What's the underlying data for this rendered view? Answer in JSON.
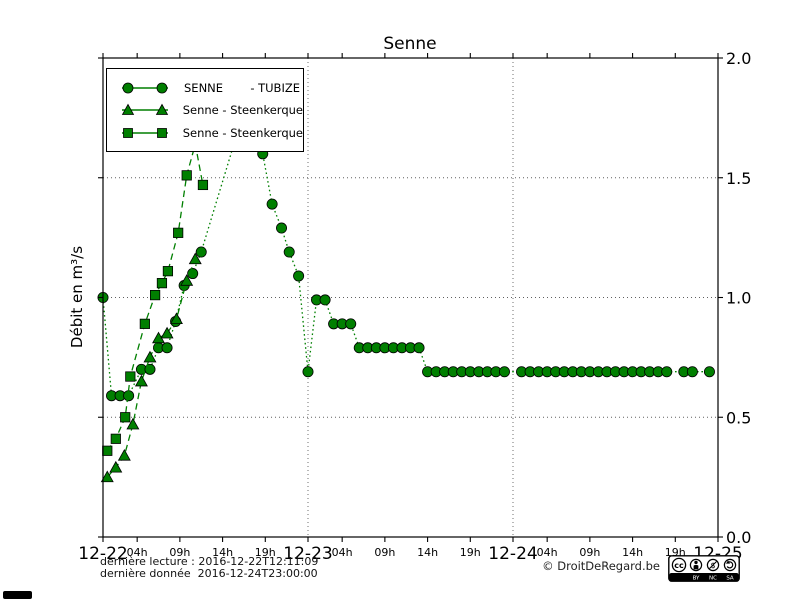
{
  "title": "Senne",
  "ylabel": "Débit en m³/s",
  "colors": {
    "series_green": "#007f00",
    "marker_edge": "#000000",
    "grid": "#606060",
    "axis": "#000000",
    "background": "#ffffff"
  },
  "legend": [
    {
      "marker": "circle",
      "label": "SENNE",
      "label2": "- TUBIZE"
    },
    {
      "marker": "triangle",
      "label": "Senne - Steenkerque"
    },
    {
      "marker": "square",
      "label": "Senne - Steenkerque"
    }
  ],
  "footer": {
    "last_reading": "dernière lecture : 2016-12-22T12:11:09",
    "last_data": "dernière donnée  2016-12-24T23:00:00",
    "copyright": "© DroitDeRegard.be",
    "license": {
      "cc_label": "cc",
      "parts": [
        "BY",
        "NC",
        "SA"
      ]
    }
  },
  "chart_data": {
    "type": "line",
    "title": "Senne",
    "xlabel": "",
    "ylabel": "Débit en m³/s",
    "x_unit": "hours since 2016-12-22 00:00",
    "xlim": [
      0,
      72
    ],
    "ylim": [
      0.0,
      2.0
    ],
    "grid": {
      "h_values": [
        0.5,
        1.0,
        1.5
      ],
      "v_hours": [
        24,
        48
      ]
    },
    "y_ticks": [
      {
        "v": 0.0,
        "label": "0.0"
      },
      {
        "v": 0.5,
        "label": "0.5"
      },
      {
        "v": 1.0,
        "label": "1.0"
      },
      {
        "v": 1.5,
        "label": "1.5"
      },
      {
        "v": 2.0,
        "label": "2.0"
      }
    ],
    "x_day_ticks": [
      {
        "t": 0,
        "label": "12-22"
      },
      {
        "t": 24,
        "label": "12-23"
      },
      {
        "t": 48,
        "label": "12-24"
      },
      {
        "t": 72,
        "label": "12-25"
      }
    ],
    "x_hour_ticks": [
      {
        "t": 4,
        "label": "04h"
      },
      {
        "t": 9,
        "label": "09h"
      },
      {
        "t": 14,
        "label": "14h"
      },
      {
        "t": 19,
        "label": "19h"
      },
      {
        "t": 28,
        "label": "04h"
      },
      {
        "t": 33,
        "label": "09h"
      },
      {
        "t": 38,
        "label": "14h"
      },
      {
        "t": 43,
        "label": "19h"
      },
      {
        "t": 52,
        "label": "04h"
      },
      {
        "t": 57,
        "label": "09h"
      },
      {
        "t": 62,
        "label": "14h"
      },
      {
        "t": 67,
        "label": "19h"
      }
    ],
    "legend_position": "upper left",
    "series": [
      {
        "name": "SENNE - TUBIZE",
        "marker": "circle",
        "linestyle": "dotted",
        "points": [
          [
            0,
            1.0
          ],
          [
            1,
            0.59
          ],
          [
            2,
            0.59
          ],
          [
            3,
            0.59
          ],
          [
            4.5,
            0.7
          ],
          [
            5.5,
            0.7
          ],
          [
            6.5,
            0.79
          ],
          [
            7.5,
            0.79
          ],
          [
            8.5,
            0.9
          ],
          [
            9.5,
            1.05
          ],
          [
            10.5,
            1.1
          ],
          [
            11.5,
            1.19
          ],
          [
            16,
            1.72
          ],
          [
            17,
            1.79
          ],
          [
            18.7,
            1.6
          ],
          [
            19.8,
            1.39
          ],
          [
            20.9,
            1.29
          ],
          [
            21.8,
            1.19
          ],
          [
            22.9,
            1.09
          ],
          [
            24,
            0.69
          ],
          [
            25,
            0.99
          ],
          [
            26,
            0.99
          ],
          [
            27,
            0.89
          ],
          [
            28,
            0.89
          ],
          [
            29,
            0.89
          ],
          [
            30,
            0.79
          ],
          [
            31,
            0.79
          ],
          [
            32,
            0.79
          ],
          [
            33,
            0.79
          ],
          [
            34,
            0.79
          ],
          [
            35,
            0.79
          ],
          [
            36,
            0.79
          ],
          [
            37,
            0.79
          ],
          [
            38,
            0.69
          ],
          [
            39,
            0.69
          ],
          [
            40,
            0.69
          ],
          [
            41,
            0.69
          ],
          [
            42,
            0.69
          ],
          [
            43,
            0.69
          ],
          [
            44,
            0.69
          ],
          [
            45,
            0.69
          ],
          [
            46,
            0.69
          ],
          [
            47,
            0.69
          ],
          [
            49,
            0.69
          ],
          [
            50,
            0.69
          ],
          [
            51,
            0.69
          ],
          [
            52,
            0.69
          ],
          [
            53,
            0.69
          ],
          [
            54,
            0.69
          ],
          [
            55,
            0.69
          ],
          [
            56,
            0.69
          ],
          [
            57,
            0.69
          ],
          [
            58,
            0.69
          ],
          [
            59,
            0.69
          ],
          [
            60,
            0.69
          ],
          [
            61,
            0.69
          ],
          [
            62,
            0.69
          ],
          [
            63,
            0.69
          ],
          [
            64,
            0.69
          ],
          [
            65,
            0.69
          ],
          [
            66,
            0.69
          ],
          [
            68,
            0.69
          ],
          [
            69,
            0.69
          ],
          [
            71,
            0.69
          ]
        ]
      },
      {
        "name": "Senne - Steenkerque",
        "marker": "triangle",
        "linestyle": "dashed",
        "points": [
          [
            0.5,
            0.25
          ],
          [
            1.5,
            0.29
          ],
          [
            2.5,
            0.34
          ],
          [
            3.5,
            0.47
          ],
          [
            4.5,
            0.65
          ],
          [
            5.5,
            0.75
          ],
          [
            6.5,
            0.83
          ],
          [
            7.5,
            0.85
          ],
          [
            8.6,
            0.91
          ],
          [
            9.8,
            1.07
          ],
          [
            10.8,
            1.16
          ]
        ]
      },
      {
        "name": "Senne - Steenkerque",
        "marker": "square",
        "linestyle": "dashed",
        "points": [
          [
            0.5,
            0.36
          ],
          [
            1.5,
            0.41
          ],
          [
            2.6,
            0.5
          ],
          [
            3.2,
            0.67
          ],
          [
            4.9,
            0.89
          ],
          [
            6.1,
            1.01
          ],
          [
            6.9,
            1.06
          ],
          [
            7.6,
            1.11
          ],
          [
            8.8,
            1.27
          ],
          [
            9.8,
            1.51
          ],
          [
            10.8,
            1.64
          ],
          [
            11.7,
            1.47
          ]
        ]
      }
    ]
  }
}
